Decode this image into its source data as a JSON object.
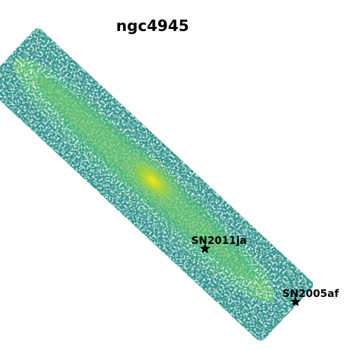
{
  "title": "ngc4945",
  "supernovae": [
    {
      "name": "SN2011ja",
      "marker": "star-icon"
    },
    {
      "name": "SN2005af",
      "marker": "star-icon"
    }
  ],
  "colors": {
    "background": "#ffffff",
    "edge": "#2a8f8a",
    "disk": "#3fae7c",
    "mid": "#7ec85a",
    "core": "#e3e11c",
    "marker": "#000000"
  }
}
